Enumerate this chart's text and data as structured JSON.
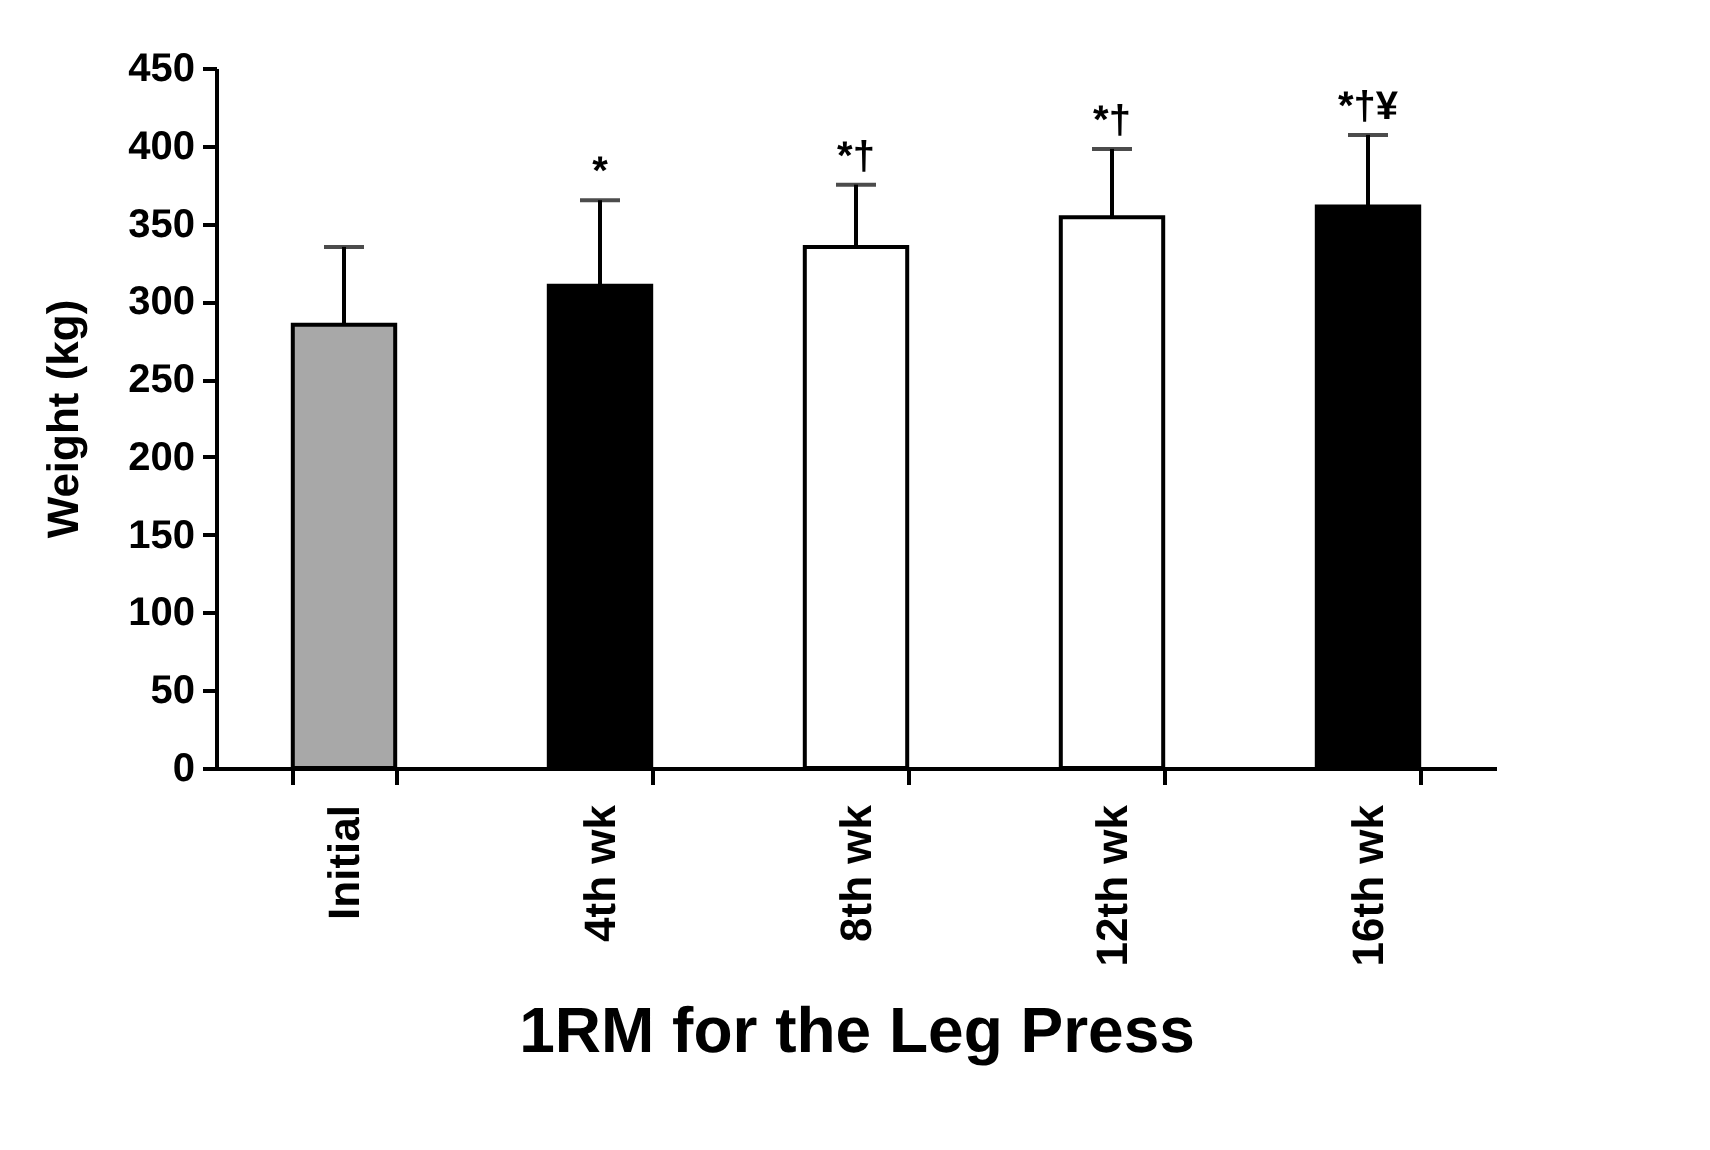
{
  "chart_data": {
    "type": "bar",
    "xlabel": "1RM for the Leg Press",
    "ylabel": "Weight (kg)",
    "categories": [
      "Initial",
      "4th wk",
      "8th wk",
      "12th wk",
      "16th wk"
    ],
    "values": [
      285,
      310,
      335,
      354,
      361
    ],
    "errors": [
      50,
      55,
      40,
      44,
      46
    ],
    "colors": [
      "#a8a8a8",
      "#000000",
      "#ffffff",
      "#ffffff",
      "#000000"
    ],
    "ylim": [
      0,
      450
    ],
    "yticks": [
      0,
      50,
      100,
      150,
      200,
      250,
      300,
      350,
      400,
      450
    ],
    "grid": false,
    "annotations": [
      {
        "text": "*",
        "x": "4th wk",
        "y": 310
      },
      {
        "text": "*†",
        "x": "8th wk",
        "y": 335
      },
      {
        "text": "*†",
        "x": "12th wk",
        "y": 354
      },
      {
        "text": "*†¥",
        "x": "16th wk",
        "y": 361
      }
    ]
  }
}
